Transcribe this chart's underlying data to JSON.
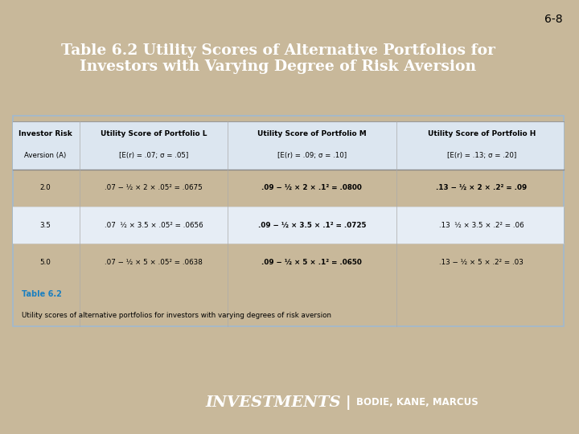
{
  "slide_bg": "#c8b89a",
  "page_num": "6-8",
  "title_line1": "Table 6.2 Utility Scores of Alternative Portfolios for",
  "title_line2": "Investors with Varying Degree of Risk Aversion",
  "title_bg": "#1a3a5c",
  "title_color": "#ffffff",
  "table_bg": "#f0f4f8",
  "table_border": "#a0b8d0",
  "header_bg": "#dce6f0",
  "col_headers_line1": [
    "Investor Risk",
    "Utility Score of Portfolio L",
    "Utility Score of Portfolio M",
    "Utility Score of Portfolio H"
  ],
  "col_headers_line2": [
    "Aversion (A)",
    "[E(r) = .07; σ = .05]",
    "[E(r) = .09; σ = .10]",
    "[E(r) = .13; σ = .20]"
  ],
  "col_headers_italic": [
    "L",
    "M",
    "H"
  ],
  "rows": [
    [
      "2.0",
      ".07 − ½ × 2 × .05² = .0675",
      ".09 − ½ × 2 × .1² = .0800",
      ".13 − ½ × 2 × .2² = .09"
    ],
    [
      "3.5",
      ".07  ½ × 3.5 × .05² = .0656",
      ".09 − ½ × 3.5 × .1² = .0725",
      ".13  ½ × 3.5 × .2² = .06"
    ],
    [
      "5.0",
      ".07 − ½ × 5 × .05² = .0638",
      ".09 − ½ × 5 × .1² = .0650",
      ".13 − ½ × 5 × .2² = .03"
    ]
  ],
  "row_bold": [
    [
      false,
      false,
      true,
      true
    ],
    [
      false,
      false,
      true,
      false
    ],
    [
      false,
      false,
      true,
      false
    ]
  ],
  "caption_title": "Table 6.2",
  "caption_title_color": "#1a7fc0",
  "caption_text": "Utility scores of alternative portfolios for investors with varying degrees of risk aversion",
  "footer_bg": "#1a3a5c",
  "footer_investments": "INVESTMENTS",
  "footer_sep": "|",
  "footer_sub": "BODIE, KANE, MARCUS",
  "footer_color": "#ffffff"
}
